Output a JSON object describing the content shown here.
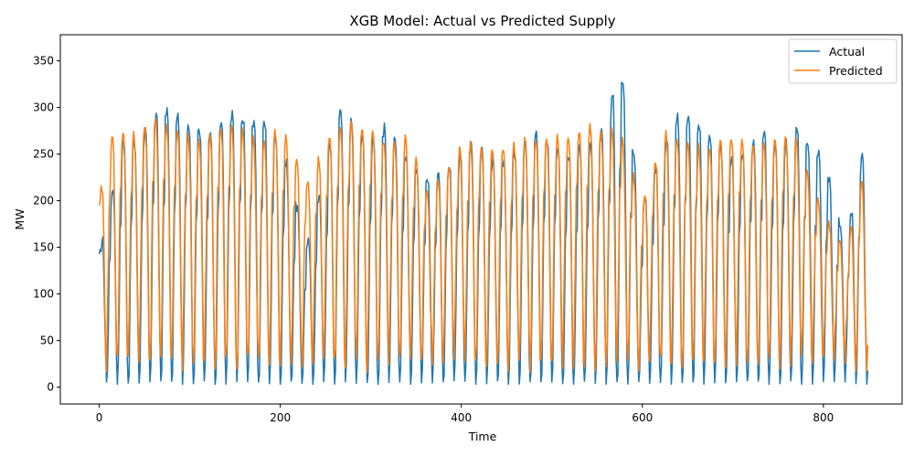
{
  "chart_data": {
    "type": "line",
    "title": "XGB Model: Actual vs Predicted Supply",
    "xlabel": "Time",
    "ylabel": "MW",
    "xlim": [
      -43,
      887
    ],
    "ylim": [
      -18,
      378
    ],
    "xticks": [
      0,
      200,
      400,
      600,
      800
    ],
    "yticks": [
      0,
      50,
      100,
      150,
      200,
      250,
      300,
      350
    ],
    "grid": false,
    "legend": "top-right",
    "series_colors": [
      "#1f77b4",
      "#ff7f0e"
    ],
    "series_names": [
      "Actual",
      "Predicted"
    ],
    "n_points": 850,
    "actual_template": [
      180,
      250,
      258,
      260,
      250,
      200,
      120,
      40,
      5,
      20,
      90,
      170,
      230
    ],
    "predicted_template": [
      210,
      255,
      268,
      262,
      245,
      190,
      110,
      45,
      25,
      60,
      140,
      205,
      240
    ],
    "cycle_length": 12,
    "actual_peaks": [
      [
        0,
        143
      ],
      [
        13,
        205
      ],
      [
        26,
        265
      ],
      [
        40,
        262
      ],
      [
        55,
        280
      ],
      [
        65,
        300
      ],
      [
        90,
        288
      ],
      [
        108,
        280
      ],
      [
        120,
        268
      ],
      [
        140,
        292
      ],
      [
        152,
        290
      ],
      [
        175,
        288
      ],
      [
        200,
        265
      ],
      [
        230,
        150
      ],
      [
        250,
        240
      ],
      [
        265,
        300
      ],
      [
        300,
        262
      ],
      [
        318,
        280
      ],
      [
        340,
        250
      ],
      [
        365,
        222
      ],
      [
        395,
        240
      ],
      [
        410,
        260
      ],
      [
        440,
        240
      ],
      [
        460,
        250
      ],
      [
        485,
        270
      ],
      [
        520,
        250
      ],
      [
        545,
        262
      ],
      [
        562,
        280
      ],
      [
        573,
        360
      ],
      [
        600,
        198
      ],
      [
        625,
        262
      ],
      [
        645,
        300
      ],
      [
        665,
        280
      ],
      [
        700,
        245
      ],
      [
        735,
        272
      ],
      [
        752,
        250
      ],
      [
        770,
        278
      ],
      [
        800,
        245
      ],
      [
        825,
        155
      ],
      [
        842,
        244
      ]
    ],
    "predicted_peaks": [
      [
        0,
        195
      ],
      [
        13,
        262
      ],
      [
        26,
        265
      ],
      [
        40,
        262
      ],
      [
        55,
        275
      ],
      [
        65,
        278
      ],
      [
        90,
        268
      ],
      [
        108,
        255
      ],
      [
        120,
        260
      ],
      [
        140,
        272
      ],
      [
        152,
        270
      ],
      [
        175,
        255
      ],
      [
        200,
        270
      ],
      [
        230,
        215
      ],
      [
        250,
        255
      ],
      [
        265,
        272
      ],
      [
        300,
        272
      ],
      [
        318,
        255
      ],
      [
        340,
        262
      ],
      [
        365,
        200
      ],
      [
        395,
        245
      ],
      [
        410,
        255
      ],
      [
        440,
        250
      ],
      [
        460,
        252
      ],
      [
        485,
        260
      ],
      [
        520,
        264
      ],
      [
        545,
        272
      ],
      [
        562,
        262
      ],
      [
        573,
        272
      ],
      [
        600,
        192
      ],
      [
        625,
        268
      ],
      [
        645,
        255
      ],
      [
        665,
        248
      ],
      [
        700,
        262
      ],
      [
        735,
        250
      ],
      [
        752,
        262
      ],
      [
        770,
        260
      ],
      [
        800,
        183
      ],
      [
        825,
        140
      ],
      [
        842,
        215
      ]
    ],
    "end_values": [
      18,
      45
    ]
  }
}
